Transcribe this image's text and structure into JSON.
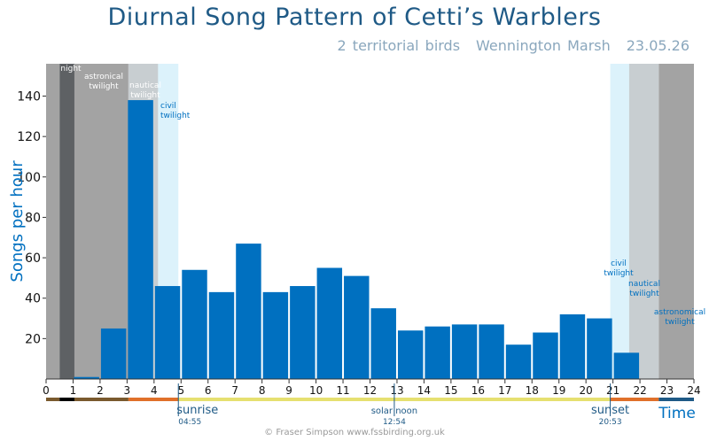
{
  "title": "Diurnal Song Pattern of Cetti’s Warblers",
  "subtitle": {
    "birds": "2 territorial birds",
    "site": "Wennington Marsh",
    "date": "23.05.26"
  },
  "credit": "© Fraser Simpson   www.fssbirding.org.uk",
  "chart_data": {
    "type": "bar",
    "xlabel": "Time",
    "ylabel": "Songs per hour",
    "xlim": [
      0,
      24
    ],
    "ylim": [
      0,
      156
    ],
    "yticks": [
      20,
      40,
      60,
      80,
      100,
      120,
      140
    ],
    "xticks": [
      0,
      1,
      2,
      3,
      4,
      5,
      6,
      7,
      8,
      9,
      10,
      11,
      12,
      13,
      14,
      15,
      16,
      17,
      18,
      19,
      20,
      21,
      22,
      23,
      24
    ],
    "bars": [
      {
        "start": 1.0,
        "end": 2.0,
        "value": 1
      },
      {
        "start": 2.0,
        "end": 3.0,
        "value": 25
      },
      {
        "start": 3.0,
        "end": 4.0,
        "value": 138
      },
      {
        "start": 4.0,
        "end": 5.0,
        "value": 46
      },
      {
        "start": 5.0,
        "end": 6.0,
        "value": 54
      },
      {
        "start": 6.0,
        "end": 7.0,
        "value": 43
      },
      {
        "start": 7.0,
        "end": 8.0,
        "value": 67
      },
      {
        "start": 8.0,
        "end": 9.0,
        "value": 43
      },
      {
        "start": 9.0,
        "end": 10.0,
        "value": 46
      },
      {
        "start": 10.0,
        "end": 11.0,
        "value": 55
      },
      {
        "start": 11.0,
        "end": 12.0,
        "value": 51
      },
      {
        "start": 12.0,
        "end": 13.0,
        "value": 35
      },
      {
        "start": 13.0,
        "end": 14.0,
        "value": 24
      },
      {
        "start": 14.0,
        "end": 15.0,
        "value": 26
      },
      {
        "start": 15.0,
        "end": 16.0,
        "value": 27
      },
      {
        "start": 16.0,
        "end": 17.0,
        "value": 27
      },
      {
        "start": 17.0,
        "end": 18.0,
        "value": 17
      },
      {
        "start": 18.0,
        "end": 19.0,
        "value": 23
      },
      {
        "start": 19.0,
        "end": 20.0,
        "value": 32
      },
      {
        "start": 20.0,
        "end": 21.0,
        "value": 30
      },
      {
        "start": 21.0,
        "end": 22.0,
        "value": 13
      }
    ],
    "bar_color": "#0070c0",
    "twilight_bands": [
      {
        "start": 0.0,
        "end": 0.5,
        "color": "#a3a3a3"
      },
      {
        "start": 0.5,
        "end": 1.05,
        "color": "#5e6164",
        "label": "night"
      },
      {
        "start": 1.05,
        "end": 3.05,
        "color": "#a3a3a3",
        "label": "astronical twilight"
      },
      {
        "start": 3.05,
        "end": 4.15,
        "color": "#c8ced1",
        "label": "nautical twilight"
      },
      {
        "start": 4.15,
        "end": 4.9,
        "color": "#dcf2fb",
        "label": "civil twilight"
      },
      {
        "start": 20.9,
        "end": 21.6,
        "color": "#dcf2fb",
        "label": "civil twilight"
      },
      {
        "start": 21.6,
        "end": 22.7,
        "color": "#c8ced1",
        "label": "nautical twilight"
      },
      {
        "start": 22.7,
        "end": 24.0,
        "color": "#a3a3a3",
        "label": "astronomical twilight"
      }
    ],
    "time_strip": [
      {
        "start": 0.0,
        "end": 0.5,
        "color": "#7a5a2e"
      },
      {
        "start": 0.5,
        "end": 1.05,
        "color": "#000000"
      },
      {
        "start": 1.05,
        "end": 3.05,
        "color": "#7a5a2e"
      },
      {
        "start": 3.05,
        "end": 4.9,
        "color": "#e0702a"
      },
      {
        "start": 4.9,
        "end": 20.9,
        "color": "#e6e070"
      },
      {
        "start": 20.9,
        "end": 22.7,
        "color": "#e0702a"
      },
      {
        "start": 22.7,
        "end": 24.0,
        "color": "#1f5a86"
      }
    ],
    "markers": [
      {
        "x": 4.9,
        "label": "sunrise",
        "time": "04:55"
      },
      {
        "x": 12.9,
        "label": "solar  noon",
        "time": "12:54"
      },
      {
        "x": 20.9,
        "label": "sunset",
        "time": "20:53"
      }
    ]
  }
}
